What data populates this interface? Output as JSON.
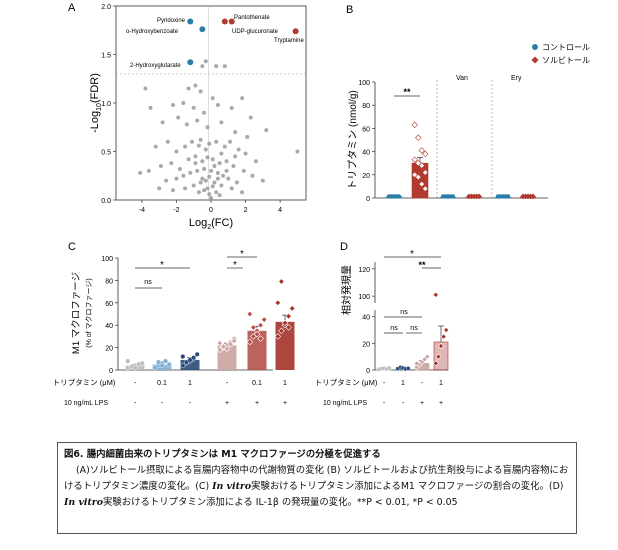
{
  "panels": {
    "A": {
      "letter": "A",
      "ylabel_main": "-Log",
      "ylabel_sub": "10",
      "ylabel_tail": "(FDR)",
      "xlabel_main": "Log",
      "xlabel_sub": "2",
      "xlabel_tail": "(FC)",
      "xticks": [
        "-4",
        "-2",
        "0",
        "2",
        "4"
      ],
      "yticks": [
        "0.0",
        "0.5",
        "1.0",
        "1.5",
        "2.0"
      ],
      "labels": {
        "pyridoxine": "Pyridoxine",
        "hydroxybenzoate": "o-Hydroxybenzoate",
        "hydroxyglutarate": "2-Hydroxyglutarate",
        "pantothenate": "Pantothenate",
        "udp": "UDP-glucuronate",
        "tryptamine": "Tryptamine"
      }
    },
    "B": {
      "letter": "B",
      "ylabel": "トリプタミン (nmol/g)",
      "yticks": [
        "0",
        "20",
        "40",
        "60",
        "80",
        "100"
      ],
      "groups": [
        "Van",
        "Ery"
      ],
      "sig": "**",
      "legend": [
        "コントロール",
        "ソルビトール"
      ]
    },
    "C": {
      "letter": "C",
      "ylabel": "M1 マクロファージ",
      "ylabel_sub": "(% of マクロファージ)",
      "yticks": [
        "0",
        "20",
        "40",
        "60",
        "80",
        "100"
      ],
      "row1_label": "トリプタミン (μM)",
      "row1": [
        "-",
        "0.1",
        "1",
        "-",
        "0.1",
        "1"
      ],
      "row2_label": "10 ng/mL LPS",
      "row2": [
        "-",
        "-",
        "-",
        "+",
        "+",
        "+"
      ],
      "ns": "ns",
      "star": "*"
    },
    "D": {
      "letter": "D",
      "ylabel": "相対発現量",
      "yticks_low": [
        "0",
        "20",
        "40"
      ],
      "yticks_high": [
        "100",
        "120"
      ],
      "row1_label": "トリプタミン (μM)",
      "row1": [
        "-",
        "1",
        "-",
        "1"
      ],
      "row2_label": "10 ng/mL LPS",
      "row2": [
        "-",
        "-",
        "+",
        "+"
      ],
      "ns": "ns",
      "star": "*",
      "star2": "**"
    }
  },
  "chart_data": [
    {
      "type": "scatter",
      "xlabel": "Log2(FC)",
      "ylabel": "-Log10(FDR)",
      "xlim": [
        -5.5,
        5.5
      ],
      "ylim": [
        0,
        2.0
      ],
      "threshold_y": 1.3,
      "highlighted": [
        {
          "name": "Pyridoxine",
          "x": -1.2,
          "y": 1.84,
          "color": "#2a7fa8"
        },
        {
          "name": "o-Hydroxybenzoate",
          "x": -0.5,
          "y": 1.76,
          "color": "#2a7fa8"
        },
        {
          "name": "2-Hydroxyglutarate",
          "x": -1.2,
          "y": 1.42,
          "color": "#2a7fa8"
        },
        {
          "name": "Pantothenate",
          "x": 0.8,
          "y": 1.84,
          "color": "#b03a2e"
        },
        {
          "name": "UDP-glucuronate",
          "x": 1.2,
          "y": 1.84,
          "color": "#b03a2e"
        },
        {
          "name": "Tryptamine",
          "x": 4.9,
          "y": 1.74,
          "color": "#b03a2e"
        }
      ],
      "points": [
        [
          -0.5,
          1.38
        ],
        [
          -0.3,
          1.43
        ],
        [
          0.3,
          1.38
        ],
        [
          0.8,
          1.38
        ],
        [
          -0.9,
          1.18
        ],
        [
          -1.3,
          1.15
        ],
        [
          -0.6,
          1.12
        ],
        [
          0.1,
          1.05
        ],
        [
          -3.8,
          1.15
        ],
        [
          -3.5,
          0.95
        ],
        [
          -2.2,
          0.98
        ],
        [
          -1.6,
          1.0
        ],
        [
          -1.0,
          0.95
        ],
        [
          -0.4,
          0.9
        ],
        [
          0.4,
          0.98
        ],
        [
          1.2,
          0.95
        ],
        [
          1.8,
          1.05
        ],
        [
          2.3,
          0.85
        ],
        [
          -2.8,
          0.8
        ],
        [
          -1.9,
          0.85
        ],
        [
          -1.4,
          0.78
        ],
        [
          -0.8,
          0.82
        ],
        [
          -0.2,
          0.75
        ],
        [
          0.6,
          0.8
        ],
        [
          1.4,
          0.7
        ],
        [
          2.1,
          0.65
        ],
        [
          3.2,
          0.72
        ],
        [
          5.0,
          0.5
        ],
        [
          -3.2,
          0.55
        ],
        [
          -2.5,
          0.6
        ],
        [
          -2.0,
          0.5
        ],
        [
          -1.5,
          0.55
        ],
        [
          -1.1,
          0.6
        ],
        [
          -0.6,
          0.62
        ],
        [
          -0.1,
          0.58
        ],
        [
          0.3,
          0.6
        ],
        [
          0.8,
          0.55
        ],
        [
          1.1,
          0.6
        ],
        [
          1.6,
          0.52
        ],
        [
          2.0,
          0.48
        ],
        [
          2.6,
          0.4
        ],
        [
          -4.1,
          0.28
        ],
        [
          -3.6,
          0.3
        ],
        [
          -2.9,
          0.35
        ],
        [
          -2.3,
          0.38
        ],
        [
          -1.8,
          0.32
        ],
        [
          -1.3,
          0.42
        ],
        [
          -0.9,
          0.45
        ],
        [
          -0.5,
          0.4
        ],
        [
          -0.2,
          0.44
        ],
        [
          0.1,
          0.42
        ],
        [
          0.5,
          0.38
        ],
        [
          0.9,
          0.4
        ],
        [
          1.3,
          0.35
        ],
        [
          1.9,
          0.3
        ],
        [
          2.4,
          0.25
        ],
        [
          3.0,
          0.2
        ],
        [
          -2.6,
          0.2
        ],
        [
          -2.0,
          0.22
        ],
        [
          -1.6,
          0.25
        ],
        [
          -1.2,
          0.28
        ],
        [
          -0.8,
          0.3
        ],
        [
          -0.4,
          0.32
        ],
        [
          0.0,
          0.3
        ],
        [
          0.4,
          0.28
        ],
        [
          0.7,
          0.25
        ],
        [
          1.0,
          0.22
        ],
        [
          1.5,
          0.18
        ],
        [
          -1.0,
          0.15
        ],
        [
          -0.6,
          0.18
        ],
        [
          -0.3,
          0.2
        ],
        [
          0.2,
          0.18
        ],
        [
          0.6,
          0.15
        ],
        [
          -0.7,
          0.08
        ],
        [
          -0.4,
          0.1
        ],
        [
          -0.1,
          0.06
        ],
        [
          0.3,
          0.08
        ],
        [
          0.5,
          0.05
        ],
        [
          -0.2,
          0.12
        ],
        [
          0.1,
          0.14
        ],
        [
          -0.5,
          0.22
        ],
        [
          0.4,
          0.22
        ],
        [
          -0.1,
          0.24
        ],
        [
          0.2,
          0.35
        ],
        [
          -0.3,
          0.52
        ],
        [
          0.6,
          0.48
        ],
        [
          -0.7,
          0.56
        ],
        [
          0.9,
          0.3
        ],
        [
          -1.5,
          0.12
        ],
        [
          1.2,
          0.12
        ],
        [
          -2.2,
          0.1
        ],
        [
          1.8,
          0.08
        ],
        [
          0.0,
          0.02
        ],
        [
          -0.9,
          0.38
        ],
        [
          1.4,
          0.45
        ],
        [
          -3.0,
          0.12
        ]
      ]
    },
    {
      "type": "bar",
      "ylabel": "トリプタミン (nmol/g)",
      "ylim": [
        0,
        100
      ],
      "legend": [
        "コントロール",
        "ソルビトール"
      ],
      "groups": [
        "",
        "Van",
        "Ery"
      ],
      "series": [
        {
          "name": "コントロール",
          "values": [
            1,
            0.5,
            0.5
          ],
          "color": "#2a7fa8"
        },
        {
          "name": "ソルビトール",
          "values": [
            30,
            0.5,
            0.5
          ],
          "color": "#b03a2e"
        }
      ],
      "error": [
        [
          1,
          0.3,
          0.3
        ],
        [
          5,
          0.3,
          0.3
        ]
      ],
      "points_sorbitol": [
        63,
        52,
        41,
        38,
        33,
        30,
        28,
        22,
        20,
        18,
        12,
        8
      ],
      "sig": "**"
    },
    {
      "type": "bar",
      "ylabel": "M1 マクロファージ (% of マクロファージ)",
      "ylim": [
        0,
        100
      ],
      "categories": [
        "- / -",
        "0.1 / -",
        "1 / -",
        "- / +",
        "0.1 / +",
        "1 / +"
      ],
      "values": [
        4,
        5,
        9,
        22,
        35,
        43
      ],
      "error": [
        1,
        1.5,
        2,
        2,
        4,
        6
      ],
      "colors": [
        "#bdbdbd",
        "#7eaed2",
        "#2a4a7a",
        "#c9a4a0",
        "#b5524c",
        "#a33229"
      ],
      "points": [
        [
          2,
          3,
          4,
          5,
          6,
          8,
          3,
          2,
          5
        ],
        [
          3,
          4,
          6,
          8,
          5,
          2,
          7,
          4
        ],
        [
          4,
          6,
          8,
          10,
          14,
          12,
          7,
          9,
          11
        ],
        [
          18,
          20,
          22,
          25,
          28,
          24,
          21,
          19,
          23,
          26
        ],
        [
          25,
          30,
          35,
          40,
          45,
          50,
          38,
          32,
          28
        ],
        [
          30,
          35,
          40,
          48,
          55,
          60,
          79,
          42,
          38
        ]
      ]
    },
    {
      "type": "bar",
      "ylabel": "相対発現量",
      "axis_break": [
        45,
        95
      ],
      "categories": [
        "- / -",
        "1 / -",
        "- / +",
        "1 / +"
      ],
      "values": [
        1,
        1.5,
        5,
        21
      ],
      "error": [
        0.5,
        0.8,
        2,
        12
      ],
      "colors": [
        "#bdbdbd",
        "#2a4a7a",
        "#c9a4a0",
        "#a33229"
      ],
      "points": [
        [
          0.5,
          1,
          1.2,
          0.8,
          1.5
        ],
        [
          1,
          2,
          1.5,
          0.8,
          1.2
        ],
        [
          2,
          4,
          6,
          8,
          10,
          5
        ],
        [
          5,
          10,
          18,
          25,
          30,
          101
        ]
      ]
    }
  ],
  "caption": {
    "title": "図6. 腸内細菌由来のトリプタミンは M1 マクロファージの分極を促進する",
    "body_1": "(A)ソルビトール摂取による盲腸内容物中の代謝物質の変化 (B) ソルビトールおよび抗生剤投与による盲腸内容物におけるトリプタミン濃度の変化。(C) ",
    "invitro_1": "In vitro",
    "body_2": "実験おけるトリプタミン添加によるM1 マクロファージの割合の変化。(D) ",
    "invitro_2": "In vitro",
    "body_3": "実験おけるトリプタミン添加による IL-1β の発現量の変化。**P < 0.01, *P < 0.05"
  }
}
